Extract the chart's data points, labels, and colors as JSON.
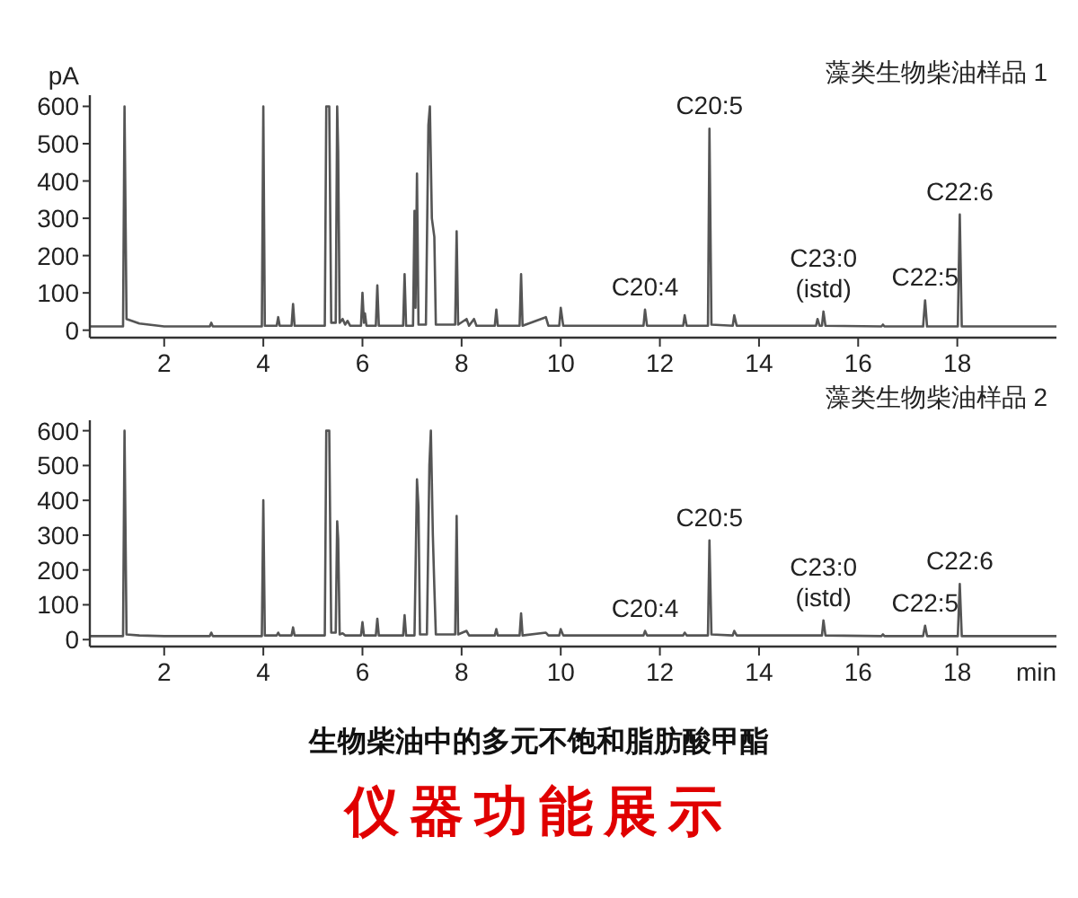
{
  "chart_data": [
    {
      "type": "line",
      "title": "藻类生物柴油样品 1",
      "ylabel": "pA",
      "xlim": [
        0.5,
        20
      ],
      "xticks": [
        2,
        4,
        6,
        8,
        10,
        12,
        14,
        16,
        18
      ],
      "ylim": [
        -20,
        630
      ],
      "yticks": [
        0,
        100,
        200,
        300,
        400,
        500,
        600
      ],
      "grid": false,
      "series": [
        {
          "color": "#555555",
          "x": [
            0.5,
            1.17,
            1.2,
            1.24,
            1.5,
            2.0,
            2.92,
            2.95,
            2.98,
            3.97,
            4.0,
            4.03,
            4.27,
            4.3,
            4.33,
            4.57,
            4.6,
            4.63,
            5.24,
            5.27,
            5.33,
            5.37,
            5.46,
            5.49,
            5.51,
            5.54,
            5.6,
            5.65,
            5.7,
            5.75,
            5.97,
            6.0,
            6.03,
            6.05,
            6.08,
            6.27,
            6.3,
            6.33,
            6.82,
            6.85,
            6.88,
            7.02,
            7.05,
            7.07,
            7.1,
            7.13,
            7.28,
            7.33,
            7.36,
            7.4,
            7.45,
            7.48,
            7.87,
            7.9,
            7.93,
            8.1,
            8.15,
            8.25,
            8.3,
            8.67,
            8.7,
            8.73,
            9.17,
            9.2,
            9.23,
            9.7,
            9.75,
            9.97,
            10.0,
            10.05,
            11.67,
            11.7,
            11.74,
            12.47,
            12.5,
            12.54,
            12.97,
            13.0,
            13.04,
            13.47,
            13.5,
            13.55,
            15.15,
            15.18,
            15.22,
            15.27,
            15.3,
            15.34,
            16.47,
            16.5,
            16.53,
            17.31,
            17.35,
            17.39,
            18.01,
            18.05,
            18.09,
            20
          ],
          "values": [
            10,
            10,
            600,
            30,
            18,
            10,
            10,
            20,
            10,
            10,
            600,
            12,
            12,
            35,
            12,
            12,
            70,
            12,
            12,
            600,
            600,
            20,
            20,
            600,
            480,
            20,
            30,
            15,
            25,
            12,
            12,
            100,
            20,
            45,
            12,
            12,
            120,
            12,
            12,
            150,
            12,
            12,
            320,
            60,
            420,
            15,
            15,
            550,
            600,
            300,
            250,
            15,
            15,
            265,
            15,
            30,
            12,
            30,
            12,
            12,
            55,
            12,
            12,
            150,
            12,
            35,
            12,
            12,
            60,
            12,
            12,
            55,
            12,
            12,
            40,
            12,
            12,
            540,
            15,
            12,
            40,
            12,
            12,
            30,
            12,
            12,
            50,
            12,
            10,
            15,
            10,
            10,
            80,
            10,
            10,
            310,
            10,
            10
          ]
        }
      ],
      "annotations": [
        {
          "text": "C20:4",
          "x": 11.7,
          "y": 55
        },
        {
          "text": "C20:5",
          "x": 13.0,
          "y": 540
        },
        {
          "text": "C23:0\n(istd)",
          "x": 15.3,
          "y": 50
        },
        {
          "text": "C22:5",
          "x": 17.35,
          "y": 80
        },
        {
          "text": "C22:6",
          "x": 18.05,
          "y": 310
        }
      ]
    },
    {
      "type": "line",
      "title": "藻类生物柴油样品 2",
      "xlabel": "min",
      "xlim": [
        0.5,
        20
      ],
      "xticks": [
        2,
        4,
        6,
        8,
        10,
        12,
        14,
        16,
        18
      ],
      "ylim": [
        -20,
        630
      ],
      "yticks": [
        0,
        100,
        200,
        300,
        400,
        500,
        600
      ],
      "grid": false,
      "series": [
        {
          "color": "#555555",
          "x": [
            0.5,
            1.17,
            1.2,
            1.24,
            1.5,
            2.0,
            2.92,
            2.95,
            2.98,
            3.97,
            4.0,
            4.03,
            4.27,
            4.3,
            4.33,
            4.57,
            4.6,
            4.63,
            5.24,
            5.27,
            5.33,
            5.37,
            5.46,
            5.49,
            5.51,
            5.54,
            5.6,
            5.65,
            5.97,
            6.0,
            6.03,
            6.27,
            6.3,
            6.33,
            6.82,
            6.85,
            6.88,
            7.05,
            7.1,
            7.13,
            7.16,
            7.3,
            7.35,
            7.38,
            7.42,
            7.45,
            7.48,
            7.87,
            7.9,
            7.93,
            8.1,
            8.15,
            8.67,
            8.7,
            8.73,
            9.17,
            9.2,
            9.23,
            9.7,
            9.75,
            9.97,
            10.0,
            10.05,
            11.67,
            11.7,
            11.74,
            12.47,
            12.5,
            12.54,
            12.97,
            13.0,
            13.04,
            13.47,
            13.5,
            13.55,
            15.27,
            15.3,
            15.34,
            16.47,
            16.5,
            16.53,
            17.31,
            17.35,
            17.39,
            18.01,
            18.05,
            18.09,
            20
          ],
          "values": [
            10,
            10,
            600,
            15,
            12,
            10,
            10,
            20,
            10,
            10,
            400,
            12,
            12,
            20,
            12,
            12,
            35,
            12,
            12,
            600,
            600,
            20,
            20,
            340,
            290,
            15,
            18,
            12,
            12,
            50,
            12,
            12,
            60,
            12,
            12,
            70,
            12,
            12,
            460,
            380,
            15,
            15,
            500,
            600,
            300,
            150,
            15,
            15,
            355,
            15,
            25,
            12,
            12,
            30,
            12,
            12,
            75,
            12,
            20,
            12,
            12,
            30,
            12,
            12,
            25,
            12,
            12,
            20,
            12,
            12,
            285,
            15,
            12,
            25,
            12,
            12,
            55,
            12,
            10,
            15,
            10,
            10,
            40,
            10,
            10,
            160,
            10,
            10
          ]
        }
      ],
      "annotations": [
        {
          "text": "C20:4",
          "x": 11.7,
          "y": 25
        },
        {
          "text": "C20:5",
          "x": 13.0,
          "y": 285
        },
        {
          "text": "C23:0\n(istd)",
          "x": 15.3,
          "y": 55
        },
        {
          "text": "C22:5",
          "x": 17.35,
          "y": 40
        },
        {
          "text": "C22:6",
          "x": 18.05,
          "y": 160
        },
        "生物柴油中的多元不饱和脂肪酸甲酯",
        "仪器功能展示"
      ]
    }
  ]
}
